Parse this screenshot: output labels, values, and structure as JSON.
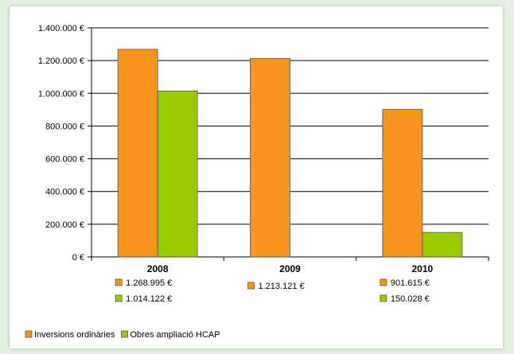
{
  "colors": {
    "series_1": "#f7941d",
    "series_2": "#99cc00",
    "grid": "#000000",
    "bar_stroke": "#555555"
  },
  "chart_data": {
    "type": "bar",
    "title": "",
    "xlabel": "",
    "ylabel": "",
    "categories": [
      "2008",
      "2009",
      "2010"
    ],
    "ylim": [
      0,
      1400000
    ],
    "yticks": [
      {
        "value": 0,
        "label": "0 €"
      },
      {
        "value": 200000,
        "label": "200.000 €"
      },
      {
        "value": 400000,
        "label": "400.000 €"
      },
      {
        "value": 600000,
        "label": "600.000 €"
      },
      {
        "value": 800000,
        "label": "800.000 €"
      },
      {
        "value": 1000000,
        "label": "1.000.000 €"
      },
      {
        "value": 1200000,
        "label": "1.200.000 €"
      },
      {
        "value": 1400000,
        "label": "1.400.000 €"
      }
    ],
    "grid": true,
    "legend_placement": "bottom-left",
    "series": [
      {
        "name": "Inversions ordinàries",
        "values": [
          1268995,
          1213121,
          901615
        ],
        "labels": [
          "1.268.995 €",
          "1.213.121 €",
          "901.615 €"
        ]
      },
      {
        "name": "Obres ampliació HCAP",
        "values": [
          1014122,
          null,
          150028
        ],
        "labels": [
          "1.014.122 €",
          "",
          "150.028 €"
        ]
      }
    ]
  }
}
